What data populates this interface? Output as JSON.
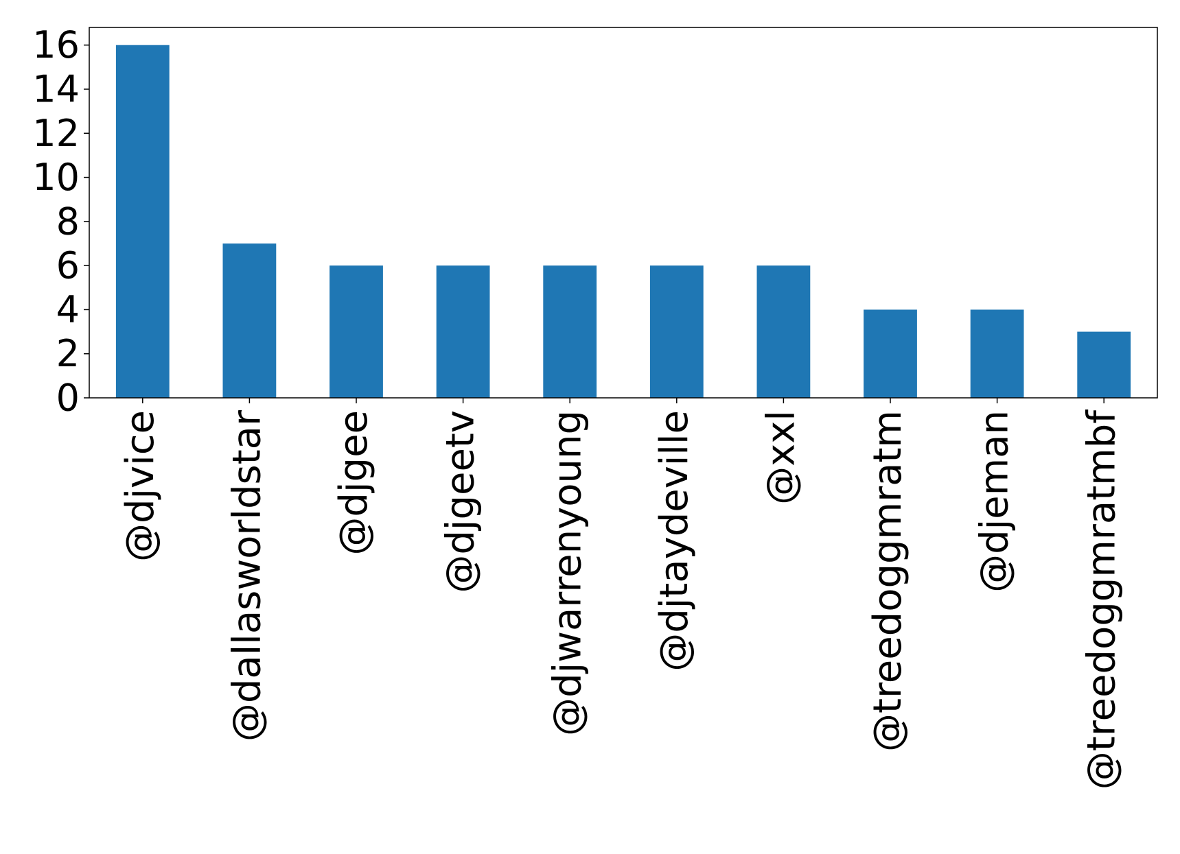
{
  "chart_data": {
    "type": "bar",
    "title": "",
    "xlabel": "",
    "ylabel": "",
    "categories": [
      "@djvice",
      "@dallasworldstar",
      "@djgee",
      "@djgeetv",
      "@djwarrenyoung",
      "@djtaydeville",
      "@xxl",
      "@treedoggmratm",
      "@djeman",
      "@treedoggmratmbf"
    ],
    "values": [
      16,
      7,
      6,
      6,
      6,
      6,
      6,
      4,
      4,
      3
    ],
    "ylim": [
      0,
      16.8
    ],
    "yticks": [
      0,
      2,
      4,
      6,
      8,
      10,
      12,
      14,
      16
    ],
    "grid": false,
    "legend": "none",
    "bar_color": "#1f77b4"
  }
}
